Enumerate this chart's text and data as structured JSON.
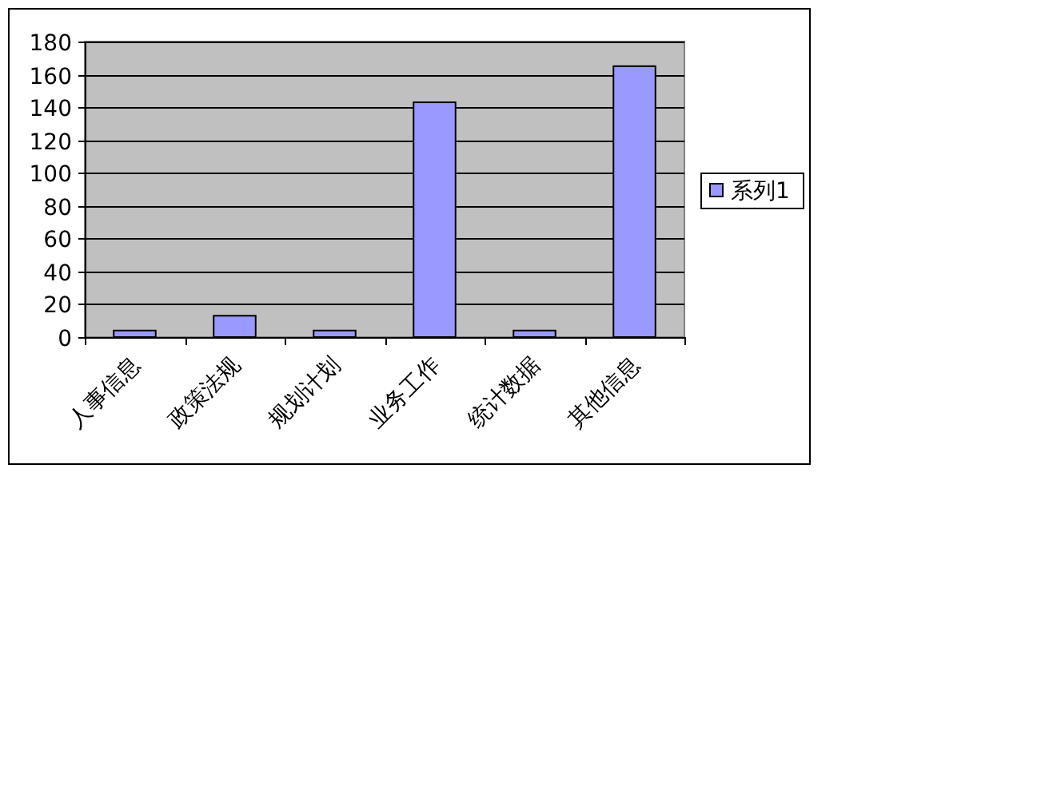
{
  "chart_data": {
    "type": "bar",
    "categories": [
      "人事信息",
      "政策法规",
      "规划计划",
      "业务工作",
      "统计数据",
      "其他信息"
    ],
    "series": [
      {
        "name": "系列1",
        "color": "#9999ff",
        "values": [
          4,
          13,
          4,
          143,
          4,
          165
        ]
      }
    ],
    "ylim": [
      0,
      180
    ],
    "yticks": [
      0,
      20,
      40,
      60,
      80,
      100,
      120,
      140,
      160,
      180
    ],
    "grid": "y",
    "legend": "right"
  }
}
